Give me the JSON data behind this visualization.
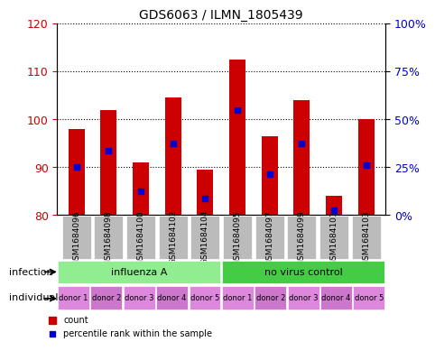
{
  "title": "GDS6063 / ILMN_1805439",
  "samples": [
    "GSM1684096",
    "GSM1684098",
    "GSM1684100",
    "GSM1684102",
    "GSM1684104",
    "GSM1684095",
    "GSM1684097",
    "GSM1684099",
    "GSM1684101",
    "GSM1684103"
  ],
  "bar_bottoms": [
    80,
    80,
    80,
    80,
    80,
    80,
    80,
    80,
    80,
    80
  ],
  "bar_tops": [
    98,
    102,
    91,
    104.5,
    89.5,
    112.5,
    96.5,
    104,
    84,
    100
  ],
  "blue_positions": [
    90,
    93.5,
    85,
    95,
    83.5,
    102,
    88.5,
    95,
    81,
    90.5
  ],
  "ylim_left": [
    80,
    120
  ],
  "ylim_right": [
    0,
    100
  ],
  "yticks_left": [
    80,
    90,
    100,
    110,
    120
  ],
  "yticks_right": [
    0,
    25,
    50,
    75,
    100
  ],
  "ytick_labels_right": [
    "0%",
    "25%",
    "50%",
    "75%",
    "100%"
  ],
  "bar_color": "#cc0000",
  "blue_color": "#0000cc",
  "bar_width": 0.5,
  "infection_groups": [
    {
      "label": "influenza A",
      "start": 0,
      "end": 5,
      "color": "#90ee90"
    },
    {
      "label": "no virus control",
      "start": 5,
      "end": 10,
      "color": "#44cc44"
    }
  ],
  "individual_labels": [
    "donor 1",
    "donor 2",
    "donor 3",
    "donor 4",
    "donor 5",
    "donor 1",
    "donor 2",
    "donor 3",
    "donor 4",
    "donor 5"
  ],
  "individual_color": "#dd88dd",
  "individual_alt_color": "#cc77cc",
  "grid_color": "#000000",
  "bg_color": "#ffffff",
  "plot_bg": "#ffffff",
  "infection_label": "infection",
  "individual_label": "individual",
  "legend_count_label": "count",
  "legend_percentile_label": "percentile rank within the sample",
  "left_axis_color": "#cc0000",
  "right_axis_color": "#0000cc",
  "xlabel_area_color": "#bbbbbb"
}
